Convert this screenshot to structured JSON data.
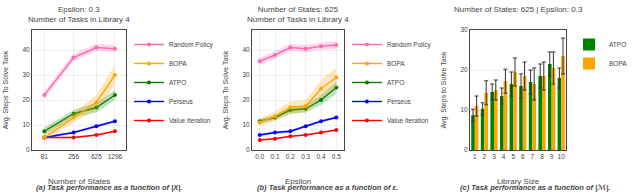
{
  "chart_data": [
    {
      "type": "line",
      "title": "Epsilon: 0.3\nNumber of Tasks in Library 4",
      "xlabel": "Number of States",
      "ylabel": "Avg. Steps To Solve Task",
      "annotations": [
        "(a) Task performance as a function of |X|."
      ],
      "x": [
        81,
        256,
        625,
        1296
      ],
      "series": [
        {
          "name": "Value Iteration",
          "color": "#FF0000",
          "values": [
            5.0,
            5.0,
            6.0,
            7.5
          ],
          "std": [
            0.3,
            0.3,
            0.3,
            0.3
          ]
        },
        {
          "name": "Perseus",
          "color": "#0000FF",
          "values": [
            5.0,
            7.0,
            9.5,
            11.5
          ],
          "std": [
            0.4,
            0.4,
            0.5,
            0.5
          ]
        },
        {
          "name": "ATPO",
          "color": "#008000",
          "values": [
            7.5,
            14.5,
            17.0,
            22.0
          ],
          "std": [
            1.5,
            1.5,
            2.0,
            2.0
          ]
        },
        {
          "name": "BOPA",
          "color": "#FFA500",
          "values": [
            5.0,
            13.0,
            19.0,
            30.0
          ],
          "std": [
            1.5,
            2.0,
            3.0,
            4.0
          ]
        },
        {
          "name": "Random Policy",
          "color": "#FF69B4",
          "values": [
            22.0,
            37.0,
            41.0,
            40.5
          ],
          "std": [
            1.5,
            1.5,
            1.5,
            1.5
          ]
        }
      ],
      "xlim": [
        50,
        2000
      ],
      "xticks": [
        81,
        256,
        625,
        1296
      ],
      "ylim": [
        0,
        48
      ],
      "yticks": [
        0,
        10,
        20,
        30,
        40
      ],
      "log": "x",
      "grid": true,
      "legend": "right",
      "marker": "circle"
    },
    {
      "type": "line",
      "title": "Number of States: 625\nNumber of Tasks in Library 4",
      "xlabel": "Epsilon",
      "ylabel": "Avg. Steps To Solve Task",
      "annotations": [
        "(b) Task performance as a function of ε."
      ],
      "x": [
        0.0,
        0.1,
        0.2,
        0.3,
        0.4,
        0.5
      ],
      "series": [
        {
          "name": "Value Iteration",
          "color": "#FF0000",
          "values": [
            4.0,
            4.5,
            5.5,
            6.0,
            7.0,
            8.0
          ],
          "std": [
            0.2,
            0.2,
            0.2,
            0.2,
            0.3,
            0.3
          ]
        },
        {
          "name": "Perseus",
          "color": "#0000FF",
          "values": [
            6.0,
            7.0,
            7.5,
            9.5,
            11.5,
            13.0
          ],
          "std": [
            0.5,
            0.5,
            0.5,
            0.5,
            0.5,
            0.5
          ]
        },
        {
          "name": "ATPO",
          "color": "#008000",
          "values": [
            11.5,
            13.0,
            16.0,
            16.5,
            20.0,
            25.0
          ],
          "std": [
            1.0,
            1.0,
            1.5,
            1.5,
            2.0,
            2.5
          ]
        },
        {
          "name": "BOPA",
          "color": "#FFA500",
          "values": [
            11.0,
            13.5,
            17.0,
            17.5,
            24.5,
            29.0
          ],
          "std": [
            1.5,
            2.0,
            2.5,
            2.5,
            3.5,
            4.0
          ]
        },
        {
          "name": "Random Policy",
          "color": "#FF69B4",
          "values": [
            35.5,
            38.0,
            41.0,
            40.5,
            41.5,
            42.0
          ],
          "std": [
            1.5,
            1.5,
            1.5,
            1.5,
            1.5,
            1.5
          ]
        }
      ],
      "xlim": [
        -0.05,
        0.55
      ],
      "xticks": [
        {
          "value": 0,
          "label": "0.0"
        },
        0.1,
        0.2,
        0.3,
        0.4,
        0.5
      ],
      "ylim": [
        0,
        48
      ],
      "yticks": [
        0,
        10,
        20,
        30,
        40
      ],
      "grid": true,
      "legend": "right",
      "marker": "circle"
    },
    {
      "type": "bar",
      "title": "Number of States: 625 | Epsilon: 0.3",
      "xlabel": "Library Size",
      "ylabel": "Avg. Steps to Solve Task",
      "annotations": [
        "(c) Task performance as a function of |ℳ|."
      ],
      "x": [
        1,
        2,
        3,
        4,
        5,
        6,
        7,
        8,
        9,
        10
      ],
      "series": [
        {
          "name": "ATPO",
          "color": "#008000",
          "values": [
            8.7,
            10.3,
            14.5,
            13.5,
            16.5,
            16.0,
            17.0,
            18.5,
            21.5,
            18.0
          ],
          "std": [
            1.5,
            1.5,
            2.0,
            2.0,
            3.0,
            3.0,
            3.0,
            3.0,
            3.0,
            2.5
          ]
        },
        {
          "name": "BOPA",
          "color": "#FFA500",
          "values": [
            11.0,
            14.3,
            15.0,
            17.2,
            19.5,
            18.5,
            16.5,
            18.5,
            20.5,
            23.5
          ],
          "std": [
            2.5,
            3.0,
            2.5,
            3.0,
            3.5,
            3.5,
            4.0,
            3.5,
            4.0,
            4.5
          ]
        }
      ],
      "xlim": [
        0.5,
        10.5
      ],
      "xticks": [
        1,
        2,
        3,
        4,
        5,
        6,
        7,
        8,
        9,
        10
      ],
      "ylim": [
        0,
        30
      ],
      "yticks": [
        0,
        10,
        20,
        30
      ],
      "grid": "y",
      "legend": "right"
    }
  ]
}
